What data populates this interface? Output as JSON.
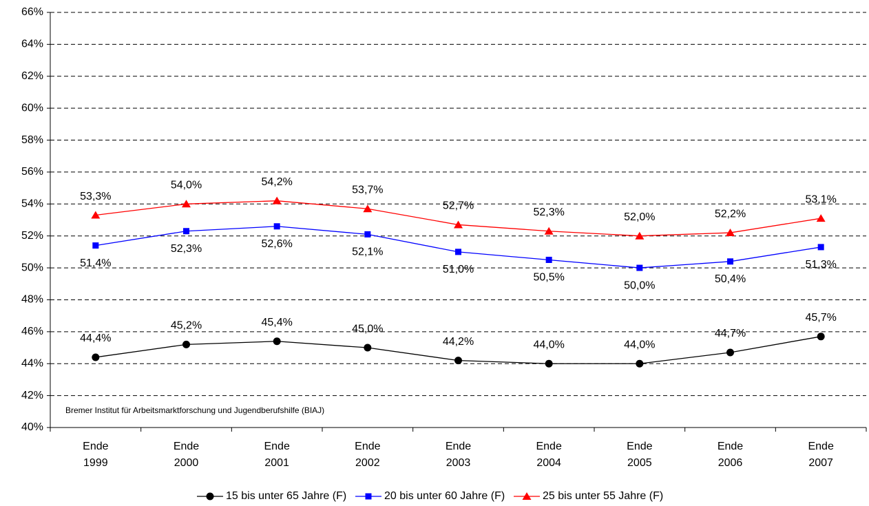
{
  "chart_data": {
    "type": "line",
    "categories": [
      "Ende 1999",
      "Ende 2000",
      "Ende 2001",
      "Ende 2002",
      "Ende 2003",
      "Ende 2004",
      "Ende 2005",
      "Ende 2006",
      "Ende 2007"
    ],
    "series": [
      {
        "name": "15 bis unter 65 Jahre (F)",
        "color": "#000000",
        "marker": "circle",
        "label_position": "above",
        "values": [
          44.4,
          45.2,
          45.4,
          45.0,
          44.2,
          44.0,
          44.0,
          44.7,
          45.7
        ],
        "value_labels": [
          "44,4%",
          "45,2%",
          "45,4%",
          "45,0%",
          "44,2%",
          "44,0%",
          "44,0%",
          "44,7%",
          "45,7%"
        ]
      },
      {
        "name": "20 bis unter 60 Jahre (F)",
        "color": "#0000ff",
        "marker": "square",
        "label_position": "below",
        "values": [
          51.4,
          52.3,
          52.6,
          52.1,
          51.0,
          50.5,
          50.0,
          50.4,
          51.3
        ],
        "value_labels": [
          "51,4%",
          "52,3%",
          "52,6%",
          "52,1%",
          "51,0%",
          "50,5%",
          "50,0%",
          "50,4%",
          "51,3%"
        ]
      },
      {
        "name": "25 bis unter 55 Jahre (F)",
        "color": "#ff0000",
        "marker": "triangle",
        "label_position": "above",
        "values": [
          53.3,
          54.0,
          54.2,
          53.7,
          52.7,
          52.3,
          52.0,
          52.2,
          53.1
        ],
        "value_labels": [
          "53,3%",
          "54,0%",
          "54,2%",
          "53,7%",
          "52,7%",
          "52,3%",
          "52,0%",
          "52,2%",
          "53,1%"
        ]
      }
    ],
    "ylim": [
      40,
      66
    ],
    "yticks": [
      {
        "value": 40,
        "label": "40%"
      },
      {
        "value": 42,
        "label": "42%"
      },
      {
        "value": 44,
        "label": "44%"
      },
      {
        "value": 46,
        "label": "46%"
      },
      {
        "value": 48,
        "label": "48%"
      },
      {
        "value": 50,
        "label": "50%"
      },
      {
        "value": 52,
        "label": "52%"
      },
      {
        "value": 54,
        "label": "54%"
      },
      {
        "value": 56,
        "label": "56%"
      },
      {
        "value": 58,
        "label": "58%"
      },
      {
        "value": 60,
        "label": "60%"
      },
      {
        "value": 62,
        "label": "62%"
      },
      {
        "value": 64,
        "label": "64%"
      },
      {
        "value": 66,
        "label": "66%"
      }
    ],
    "grid": true,
    "annotation": "Bremer Institut für Arbeitsmarktforschung und Jugendberufshilfe (BIAJ)",
    "legend": "bottom"
  }
}
